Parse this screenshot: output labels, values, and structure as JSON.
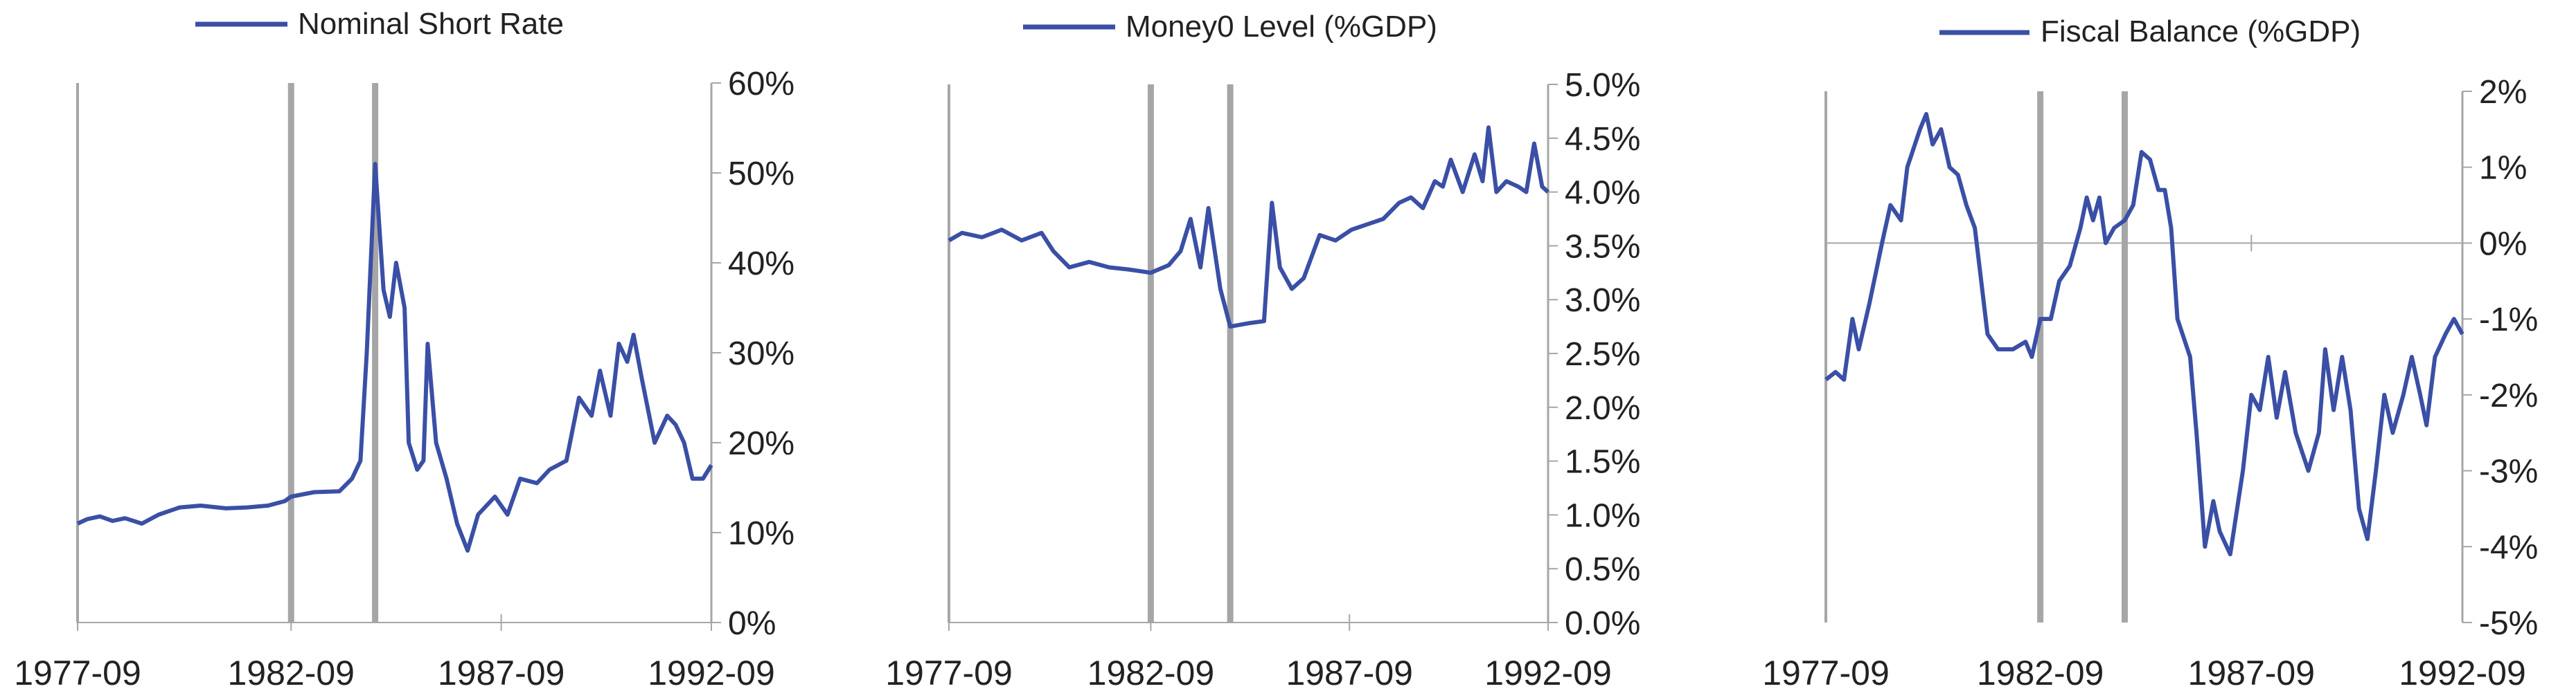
{
  "colors": {
    "series": "#3a4fa5",
    "axis": "#a6a6a6",
    "marker": "#a6a6a6"
  },
  "chart_data": [
    {
      "type": "line",
      "legend": "Nominal Short Rate",
      "x_ticks": [
        "1977-09",
        "1982-09",
        "1987-09",
        "1992-09"
      ],
      "y_axis_side": "right",
      "y_ticks": [
        "60%",
        "50%",
        "40%",
        "30%",
        "20%",
        "10%",
        "0%"
      ],
      "ylim": [
        0,
        60
      ],
      "xlim": [
        1977.67,
        1992.75
      ],
      "vertical_markers": [
        1982.75,
        1984.75
      ],
      "series": [
        {
          "values": [
            [
              1977.67,
              11
            ],
            [
              1977.9,
              11.5
            ],
            [
              1978.2,
              11.8
            ],
            [
              1978.5,
              11.3
            ],
            [
              1978.8,
              11.6
            ],
            [
              1979.2,
              11
            ],
            [
              1979.6,
              12
            ],
            [
              1980.1,
              12.8
            ],
            [
              1980.6,
              13
            ],
            [
              1981.2,
              12.7
            ],
            [
              1981.7,
              12.8
            ],
            [
              1982.2,
              13
            ],
            [
              1982.6,
              13.5
            ],
            [
              1982.75,
              14
            ],
            [
              1983.3,
              14.5
            ],
            [
              1983.9,
              14.6
            ],
            [
              1984.2,
              16
            ],
            [
              1984.4,
              18
            ],
            [
              1984.55,
              30
            ],
            [
              1984.75,
              51
            ],
            [
              1984.95,
              37
            ],
            [
              1985.1,
              34
            ],
            [
              1985.25,
              40
            ],
            [
              1985.45,
              35
            ],
            [
              1985.55,
              20
            ],
            [
              1985.75,
              17
            ],
            [
              1985.9,
              18
            ],
            [
              1986.0,
              31
            ],
            [
              1986.2,
              20
            ],
            [
              1986.45,
              16
            ],
            [
              1986.7,
              11
            ],
            [
              1986.95,
              8
            ],
            [
              1987.2,
              12
            ],
            [
              1987.6,
              14
            ],
            [
              1987.9,
              12
            ],
            [
              1988.2,
              16
            ],
            [
              1988.6,
              15.5
            ],
            [
              1988.9,
              17
            ],
            [
              1989.3,
              18
            ],
            [
              1989.6,
              25
            ],
            [
              1989.9,
              23
            ],
            [
              1990.1,
              28
            ],
            [
              1990.35,
              23
            ],
            [
              1990.55,
              31
            ],
            [
              1990.75,
              29
            ],
            [
              1990.9,
              32
            ],
            [
              1991.1,
              27
            ],
            [
              1991.4,
              20
            ],
            [
              1991.7,
              23
            ],
            [
              1991.9,
              22
            ],
            [
              1992.1,
              20
            ],
            [
              1992.3,
              16
            ],
            [
              1992.55,
              16
            ],
            [
              1992.75,
              17.5
            ]
          ]
        }
      ]
    },
    {
      "type": "line",
      "legend": "Money0 Level (%GDP)",
      "x_ticks": [
        "1977-09",
        "1982-09",
        "1987-09",
        "1992-09"
      ],
      "y_axis_side": "right",
      "y_ticks": [
        "5.0%",
        "4.5%",
        "4.0%",
        "3.5%",
        "3.0%",
        "2.5%",
        "2.0%",
        "1.5%",
        "1.0%",
        "0.5%",
        "0.0%"
      ],
      "ylim": [
        0,
        5
      ],
      "xlim": [
        1977.67,
        1992.75
      ],
      "vertical_markers": [
        1982.75,
        1984.75
      ],
      "series": [
        {
          "values": [
            [
              1977.67,
              3.55
            ],
            [
              1978.0,
              3.62
            ],
            [
              1978.5,
              3.58
            ],
            [
              1979.0,
              3.65
            ],
            [
              1979.5,
              3.55
            ],
            [
              1980.0,
              3.62
            ],
            [
              1980.3,
              3.45
            ],
            [
              1980.7,
              3.3
            ],
            [
              1981.2,
              3.35
            ],
            [
              1981.7,
              3.3
            ],
            [
              1982.2,
              3.28
            ],
            [
              1982.75,
              3.25
            ],
            [
              1983.2,
              3.32
            ],
            [
              1983.5,
              3.45
            ],
            [
              1983.75,
              3.75
            ],
            [
              1984.0,
              3.3
            ],
            [
              1984.2,
              3.85
            ],
            [
              1984.5,
              3.1
            ],
            [
              1984.75,
              2.75
            ],
            [
              1985.2,
              2.78
            ],
            [
              1985.6,
              2.8
            ],
            [
              1985.8,
              3.9
            ],
            [
              1986.0,
              3.3
            ],
            [
              1986.3,
              3.1
            ],
            [
              1986.6,
              3.2
            ],
            [
              1987.0,
              3.6
            ],
            [
              1987.4,
              3.55
            ],
            [
              1987.8,
              3.65
            ],
            [
              1988.2,
              3.7
            ],
            [
              1988.6,
              3.75
            ],
            [
              1989.0,
              3.9
            ],
            [
              1989.3,
              3.95
            ],
            [
              1989.6,
              3.85
            ],
            [
              1989.9,
              4.1
            ],
            [
              1990.1,
              4.05
            ],
            [
              1990.3,
              4.3
            ],
            [
              1990.6,
              4.0
            ],
            [
              1990.9,
              4.35
            ],
            [
              1991.1,
              4.1
            ],
            [
              1991.25,
              4.6
            ],
            [
              1991.45,
              4.0
            ],
            [
              1991.7,
              4.1
            ],
            [
              1992.0,
              4.05
            ],
            [
              1992.2,
              4.0
            ],
            [
              1992.4,
              4.45
            ],
            [
              1992.6,
              4.05
            ],
            [
              1992.75,
              4.0
            ]
          ]
        }
      ]
    },
    {
      "type": "line",
      "legend": "Fiscal Balance (%GDP)",
      "x_ticks": [
        "1977-09",
        "1982-09",
        "1987-09",
        "1992-09"
      ],
      "y_axis_side": "right",
      "y_ticks": [
        "2%",
        "1%",
        "0%",
        "-1%",
        "-2%",
        "-3%",
        "-4%",
        "-5%"
      ],
      "ylim": [
        -5,
        2
      ],
      "xlim": [
        1977.67,
        1992.75
      ],
      "vertical_markers": [
        1982.75,
        1984.75
      ],
      "series": [
        {
          "values": [
            [
              1977.67,
              -1.8
            ],
            [
              1977.9,
              -1.7
            ],
            [
              1978.1,
              -1.8
            ],
            [
              1978.3,
              -1.0
            ],
            [
              1978.45,
              -1.4
            ],
            [
              1978.7,
              -0.8
            ],
            [
              1979.0,
              0
            ],
            [
              1979.2,
              0.5
            ],
            [
              1979.45,
              0.3
            ],
            [
              1979.6,
              1.0
            ],
            [
              1979.9,
              1.5
            ],
            [
              1980.05,
              1.7
            ],
            [
              1980.2,
              1.3
            ],
            [
              1980.4,
              1.5
            ],
            [
              1980.6,
              1.0
            ],
            [
              1980.8,
              0.9
            ],
            [
              1981.0,
              0.5
            ],
            [
              1981.2,
              0.2
            ],
            [
              1981.35,
              -0.5
            ],
            [
              1981.5,
              -1.2
            ],
            [
              1981.75,
              -1.4
            ],
            [
              1982.1,
              -1.4
            ],
            [
              1982.4,
              -1.3
            ],
            [
              1982.55,
              -1.5
            ],
            [
              1982.75,
              -1.0
            ],
            [
              1983.0,
              -1.0
            ],
            [
              1983.2,
              -0.5
            ],
            [
              1983.45,
              -0.3
            ],
            [
              1983.7,
              0.2
            ],
            [
              1983.85,
              0.6
            ],
            [
              1984.0,
              0.3
            ],
            [
              1984.15,
              0.6
            ],
            [
              1984.3,
              0
            ],
            [
              1984.5,
              0.2
            ],
            [
              1984.75,
              0.3
            ],
            [
              1984.95,
              0.5
            ],
            [
              1985.15,
              1.2
            ],
            [
              1985.35,
              1.1
            ],
            [
              1985.55,
              0.7
            ],
            [
              1985.7,
              0.7
            ],
            [
              1985.85,
              0.2
            ],
            [
              1986.0,
              -1.0
            ],
            [
              1986.3,
              -1.5
            ],
            [
              1986.45,
              -2.5
            ],
            [
              1986.65,
              -4.0
            ],
            [
              1986.85,
              -3.4
            ],
            [
              1987.0,
              -3.8
            ],
            [
              1987.25,
              -4.1
            ],
            [
              1987.55,
              -3.0
            ],
            [
              1987.75,
              -2.0
            ],
            [
              1987.95,
              -2.2
            ],
            [
              1988.15,
              -1.5
            ],
            [
              1988.35,
              -2.3
            ],
            [
              1988.55,
              -1.7
            ],
            [
              1988.8,
              -2.5
            ],
            [
              1989.1,
              -3.0
            ],
            [
              1989.35,
              -2.5
            ],
            [
              1989.5,
              -1.4
            ],
            [
              1989.7,
              -2.2
            ],
            [
              1989.9,
              -1.5
            ],
            [
              1990.1,
              -2.2
            ],
            [
              1990.3,
              -3.5
            ],
            [
              1990.5,
              -3.9
            ],
            [
              1990.7,
              -3.0
            ],
            [
              1990.9,
              -2.0
            ],
            [
              1991.1,
              -2.5
            ],
            [
              1991.35,
              -2.0
            ],
            [
              1991.55,
              -1.5
            ],
            [
              1991.75,
              -2.0
            ],
            [
              1991.9,
              -2.4
            ],
            [
              1992.1,
              -1.5
            ],
            [
              1992.35,
              -1.2
            ],
            [
              1992.55,
              -1.0
            ],
            [
              1992.75,
              -1.2
            ]
          ]
        }
      ]
    }
  ]
}
